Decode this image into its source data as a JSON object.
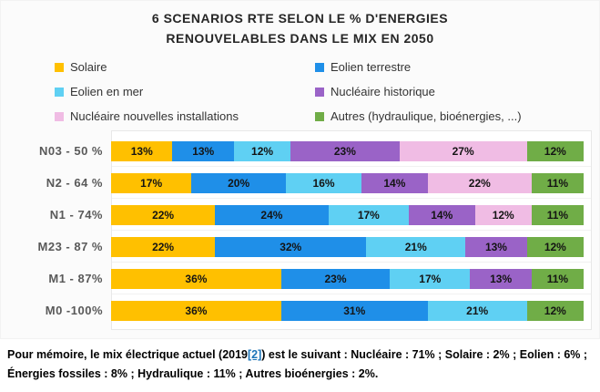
{
  "title": {
    "line1": "6 SCENARIOS RTE SELON LE % D'ENERGIES",
    "line2": "RENOUVELABLES DANS LE MIX EN 2050"
  },
  "chart_data": {
    "type": "bar",
    "orientation": "horizontal",
    "stacked": true,
    "legend_position": "top",
    "grid": false,
    "xlim": [
      0,
      100
    ],
    "value_label_suffix": "%",
    "categories": [
      "N03 - 50 %",
      "N2 - 64 %",
      "N1 - 74%",
      "M23 - 87 %",
      "M1 - 87%",
      "M0 -100%"
    ],
    "series": [
      {
        "name": "Solaire",
        "color": "#FFC000",
        "values": [
          13,
          17,
          22,
          22,
          36,
          36
        ]
      },
      {
        "name": "Eolien terrestre",
        "color": "#1F8FE8",
        "values": [
          13,
          20,
          24,
          32,
          23,
          31
        ]
      },
      {
        "name": "Eolien en mer",
        "color": "#5FD0F3",
        "values": [
          12,
          16,
          17,
          21,
          17,
          21
        ]
      },
      {
        "name": "Nucléaire historique",
        "color": "#9A63C7",
        "values": [
          23,
          14,
          14,
          13,
          13,
          0
        ]
      },
      {
        "name": "Nucléaire nouvelles installations",
        "color": "#F0BCE4",
        "values": [
          27,
          22,
          12,
          0,
          0,
          0
        ]
      },
      {
        "name": "Autres (hydraulique, bioénergies, ...)",
        "color": "#70AD47",
        "values": [
          12,
          11,
          11,
          12,
          11,
          12
        ]
      }
    ]
  },
  "footer": {
    "text_before_link": "Pour mémoire, le mix électrique actuel (2019",
    "link_text": "[2]",
    "text_after_link": ") est le suivant : Nucléaire : 71% ; Solaire : 2% ; Eolien : 6% ; Énergies fossiles : 8% ; Hydraulique : 11% ; Autres bioénergies : 2%.",
    "link_color": "#1B74B8"
  },
  "colors": {
    "title_text": "#262626",
    "category_label": "#595959",
    "value_label": "#141414",
    "chart_background": "#FBFBFB",
    "plot_background": "#FFFFFF"
  }
}
